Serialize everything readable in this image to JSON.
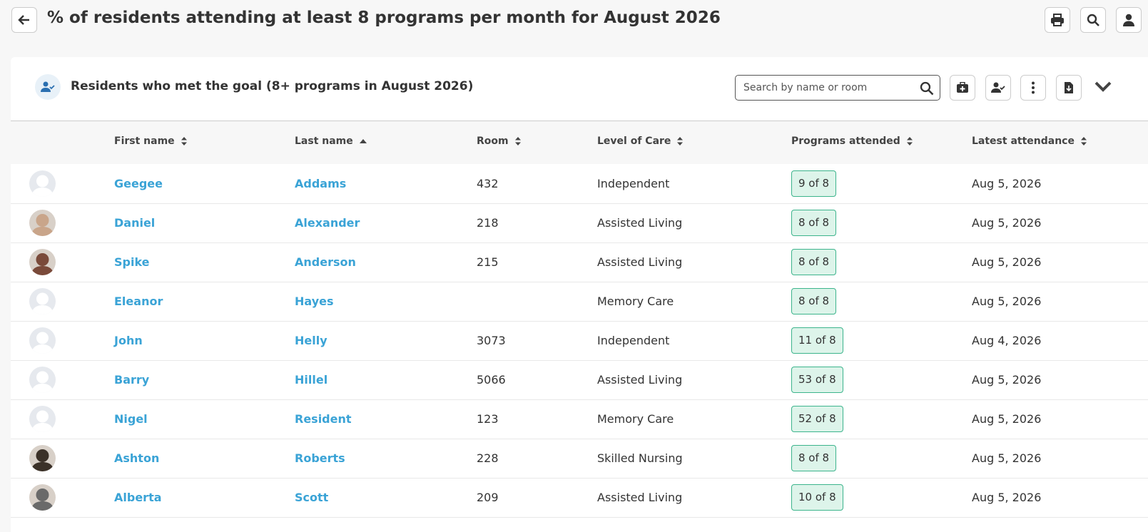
{
  "header": {
    "title": "% of residents attending at least 8 programs per month for August 2026"
  },
  "panel": {
    "title": "Residents who met the goal (8+ programs in August 2026)",
    "search_placeholder": "Search by name or room"
  },
  "table": {
    "columns": [
      "First name",
      "Last name",
      "Room",
      "Level of Care",
      "Programs attended",
      "Latest attendance"
    ],
    "rows": [
      [
        "Geegee",
        "Addams",
        432,
        "Independent",
        "9 of 8",
        "Aug 5, 2026"
      ],
      [
        "Daniel",
        "Alexander",
        218,
        "Assisted Living",
        "8 of 8",
        "Aug 5, 2026"
      ],
      [
        "Spike",
        "Anderson",
        215,
        "Assisted Living",
        "8 of 8",
        "Aug 5, 2026"
      ],
      [
        "Eleanor",
        "Hayes",
        null,
        "Memory Care",
        "8 of 8",
        "Aug 5, 2026"
      ],
      [
        "John",
        "Helly",
        3073,
        "Independent",
        "11 of 8",
        "Aug 4, 2026"
      ],
      [
        "Barry",
        "Hillel",
        5066,
        "Assisted Living",
        "53 of 8",
        "Aug 5, 2026"
      ],
      [
        "Nigel",
        "Resident",
        123,
        "Memory Care",
        "52 of 8",
        "Aug 5, 2026"
      ],
      [
        "Ashton",
        "Roberts",
        228,
        "Skilled Nursing",
        "8 of 8",
        "Aug 5, 2026"
      ],
      [
        "Alberta",
        "Scott",
        209,
        "Assisted Living",
        "10 of 8",
        "Aug 5, 2026"
      ]
    ]
  }
}
